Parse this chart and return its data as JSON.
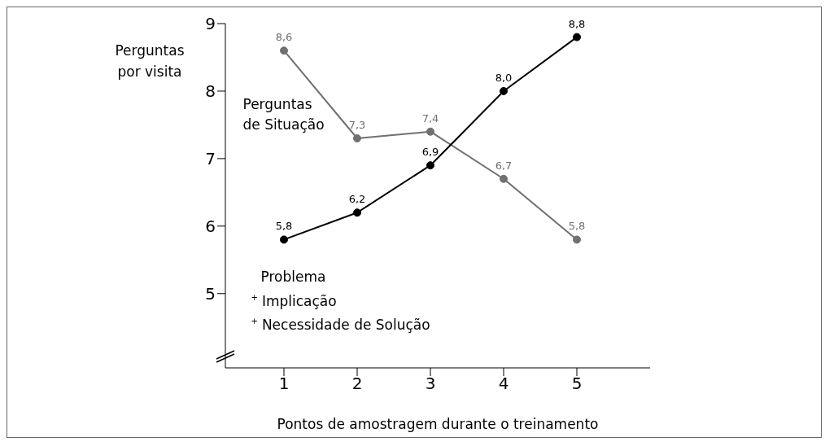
{
  "chart_data": {
    "type": "line",
    "xlabel": "Pontos de amostragem durante o treinamento",
    "ylabel": "Perguntas por visita",
    "x": [
      1,
      2,
      3,
      4,
      5
    ],
    "series": [
      {
        "name": "Perguntas de Situação",
        "color": "#707070",
        "values": [
          8.6,
          7.3,
          7.4,
          6.7,
          5.8
        ],
        "value_labels": [
          "8,6",
          "7,3",
          "7,4",
          "6,7",
          "5,8"
        ]
      },
      {
        "name": "Problema $^{+}$ Implicação $^{+}$ Necessidade de Solução",
        "color": "#000000",
        "values": [
          5.8,
          6.2,
          6.9,
          8.0,
          8.8
        ],
        "value_labels": [
          "5,8",
          "6,2",
          "6,9",
          "8,0",
          "8,8"
        ]
      }
    ],
    "xlim": [
      0.2,
      6
    ],
    "xticks": [
      1,
      2,
      3,
      4,
      5
    ],
    "ylim": [
      3.9,
      9
    ],
    "yticks": [
      5,
      6,
      7,
      8,
      9
    ],
    "grid": false,
    "legend": false,
    "marker": "circle",
    "line_style": "solid"
  }
}
